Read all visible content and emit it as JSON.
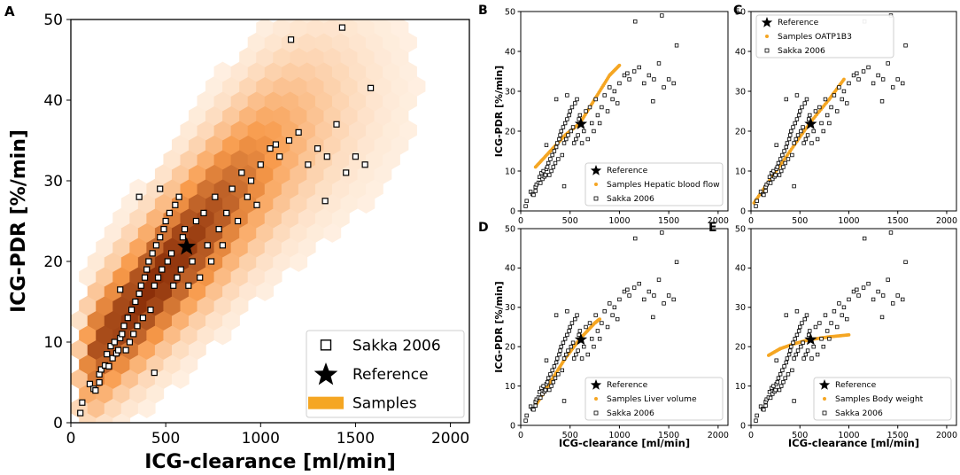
{
  "chart_data": [
    {
      "panel_label": "A",
      "type": "scatter",
      "xlabel": "ICG-clearance [ml/min]",
      "ylabel": "ICG-PDR [%/min]",
      "xlim": [
        0,
        2100
      ],
      "ylim": [
        0,
        50
      ],
      "xticks": [
        "0",
        "500",
        "1000",
        "1500",
        "2000"
      ],
      "yticks": [
        "0",
        "10",
        "20",
        "30",
        "40",
        "50"
      ],
      "legend_position": "lower-right",
      "legend": [
        "Sakka 2006",
        "Reference",
        "Samples"
      ],
      "reference": {
        "x": 610,
        "y": 21.8
      },
      "samples_density": {
        "style": "hexbin",
        "color": "#f28c28",
        "center_line": {
          "x0": 100,
          "y0": 8,
          "slope_per_1000": 27,
          "sigma_y": 4.5
        }
      },
      "sakka_2006": [
        [
          50,
          1.2
        ],
        [
          60,
          2.5
        ],
        [
          100,
          4.8
        ],
        [
          120,
          4.2
        ],
        [
          130,
          4
        ],
        [
          150,
          5
        ],
        [
          150,
          6
        ],
        [
          160,
          6.6
        ],
        [
          180,
          7.1
        ],
        [
          190,
          8.5
        ],
        [
          200,
          7
        ],
        [
          210,
          9.5
        ],
        [
          220,
          8
        ],
        [
          230,
          10
        ],
        [
          240,
          8.6
        ],
        [
          250,
          9
        ],
        [
          260,
          10.5
        ],
        [
          270,
          11
        ],
        [
          280,
          12
        ],
        [
          290,
          9
        ],
        [
          300,
          13
        ],
        [
          310,
          10
        ],
        [
          320,
          14
        ],
        [
          330,
          11
        ],
        [
          340,
          15
        ],
        [
          350,
          12
        ],
        [
          360,
          16
        ],
        [
          370,
          17
        ],
        [
          380,
          13
        ],
        [
          390,
          18
        ],
        [
          400,
          19
        ],
        [
          410,
          20
        ],
        [
          420,
          14
        ],
        [
          430,
          21
        ],
        [
          440,
          17
        ],
        [
          450,
          22
        ],
        [
          460,
          18
        ],
        [
          470,
          23
        ],
        [
          480,
          19
        ],
        [
          490,
          24
        ],
        [
          500,
          25
        ],
        [
          510,
          20
        ],
        [
          520,
          26
        ],
        [
          530,
          21
        ],
        [
          540,
          17
        ],
        [
          550,
          27
        ],
        [
          560,
          18
        ],
        [
          570,
          28
        ],
        [
          580,
          19
        ],
        [
          590,
          23
        ],
        [
          600,
          24
        ],
        [
          620,
          17
        ],
        [
          640,
          20
        ],
        [
          660,
          25
        ],
        [
          680,
          18
        ],
        [
          700,
          26
        ],
        [
          720,
          22
        ],
        [
          740,
          20
        ],
        [
          760,
          28
        ],
        [
          780,
          24
        ],
        [
          800,
          22
        ],
        [
          820,
          26
        ],
        [
          850,
          29
        ],
        [
          880,
          25
        ],
        [
          900,
          31
        ],
        [
          930,
          28
        ],
        [
          950,
          30
        ],
        [
          980,
          27
        ],
        [
          1000,
          32
        ],
        [
          1050,
          34
        ],
        [
          1100,
          33
        ],
        [
          1150,
          35
        ],
        [
          1200,
          36
        ],
        [
          1250,
          32
        ],
        [
          1300,
          34
        ],
        [
          1350,
          33
        ],
        [
          1400,
          37
        ],
        [
          1430,
          49
        ],
        [
          1500,
          33
        ],
        [
          1550,
          32
        ],
        [
          1580,
          41.5
        ],
        [
          260,
          16.5
        ],
        [
          360,
          28
        ],
        [
          470,
          29
        ],
        [
          440,
          6.2
        ],
        [
          1160,
          47.5
        ],
        [
          1080,
          34.5
        ],
        [
          1340,
          27.5
        ],
        [
          1450,
          31
        ]
      ]
    },
    {
      "panel_label": "B",
      "type": "scatter",
      "xlabel": "",
      "ylabel": "ICG-PDR [%/min]",
      "xlim": [
        0,
        2100
      ],
      "ylim": [
        0,
        50
      ],
      "xticks": [
        "0",
        "500",
        "1000",
        "1500",
        "2000"
      ],
      "yticks": [
        "0",
        "10",
        "20",
        "30",
        "40",
        "50"
      ],
      "legend_position": "lower-right",
      "legend": [
        "Reference",
        "Samples Hepatic blood flow",
        "Sakka 2006"
      ],
      "reference": {
        "x": 610,
        "y": 21.8
      },
      "samples_curve": [
        [
          150,
          11
        ],
        [
          300,
          15
        ],
        [
          450,
          19
        ],
        [
          600,
          22
        ],
        [
          750,
          28
        ],
        [
          900,
          34
        ],
        [
          1000,
          36.5
        ]
      ]
    },
    {
      "panel_label": "C",
      "type": "scatter",
      "xlabel": "",
      "ylabel": "",
      "xlim": [
        0,
        2100
      ],
      "ylim": [
        0,
        50
      ],
      "xticks": [
        "0",
        "500",
        "1000",
        "1500",
        "2000"
      ],
      "yticks": [
        "0",
        "10",
        "20",
        "30",
        "40",
        "50"
      ],
      "legend_position": "upper-left",
      "legend": [
        "Reference",
        "Samples OATP1B3",
        "Sakka 2006"
      ],
      "reference": {
        "x": 610,
        "y": 21.8
      },
      "samples_curve": [
        [
          30,
          2
        ],
        [
          200,
          8
        ],
        [
          400,
          15
        ],
        [
          600,
          22
        ],
        [
          800,
          28
        ],
        [
          950,
          33
        ]
      ]
    },
    {
      "panel_label": "D",
      "type": "scatter",
      "xlabel": "ICG-clearance [ml/min]",
      "ylabel": "ICG-PDR [%/min]",
      "xlim": [
        0,
        2100
      ],
      "ylim": [
        0,
        50
      ],
      "xticks": [
        "0",
        "500",
        "1000",
        "1500",
        "2000"
      ],
      "yticks": [
        "0",
        "10",
        "20",
        "30",
        "40",
        "50"
      ],
      "legend_position": "lower-right",
      "legend": [
        "Reference",
        "Samples Liver volume",
        "Sakka 2006"
      ],
      "reference": {
        "x": 610,
        "y": 21.8
      },
      "samples_curve": [
        [
          150,
          5
        ],
        [
          300,
          11
        ],
        [
          450,
          17
        ],
        [
          600,
          22
        ],
        [
          750,
          26
        ],
        [
          800,
          27
        ]
      ]
    },
    {
      "panel_label": "E",
      "type": "scatter",
      "xlabel": "ICG-clearance [ml/min]",
      "ylabel": "",
      "xlim": [
        0,
        2100
      ],
      "ylim": [
        0,
        50
      ],
      "xticks": [
        "0",
        "500",
        "1000",
        "1500",
        "2000"
      ],
      "yticks": [
        "0",
        "10",
        "20",
        "30",
        "40",
        "50"
      ],
      "legend_position": "lower-right",
      "legend": [
        "Reference",
        "Samples Body weight",
        "Sakka 2006"
      ],
      "reference": {
        "x": 610,
        "y": 21.8
      },
      "samples_curve": [
        [
          180,
          17.8
        ],
        [
          300,
          19.5
        ],
        [
          450,
          20.8
        ],
        [
          600,
          21.8
        ],
        [
          800,
          22.5
        ],
        [
          1000,
          23
        ]
      ]
    }
  ],
  "colors": {
    "samples": "#f5a623",
    "samples_dark": "#c2480f",
    "axis": "#000000",
    "marker_edge": "#000000",
    "marker_fill": "#ffffff"
  }
}
